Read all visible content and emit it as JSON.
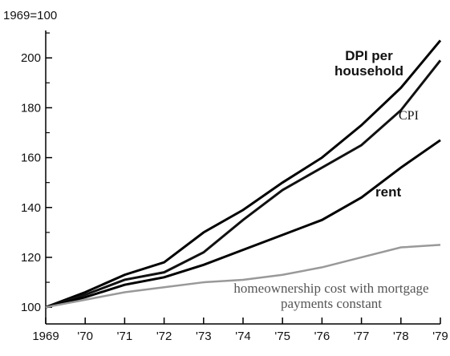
{
  "chart_data": {
    "type": "line",
    "ylabel": "1969=100",
    "categories": [
      "1969",
      "'70",
      "'71",
      "'72",
      "'73",
      "'74",
      "'75",
      "'76",
      "'77",
      "'78",
      "'79"
    ],
    "series": [
      {
        "name": "DPI per household",
        "color": "#000000",
        "values": [
          100,
          106,
          113,
          118,
          130,
          139,
          150,
          160,
          173,
          188,
          207
        ]
      },
      {
        "name": "CPI",
        "color": "#111111",
        "values": [
          100,
          105,
          111,
          114,
          122,
          135,
          147,
          156,
          165,
          179,
          199
        ]
      },
      {
        "name": "rent",
        "color": "#000000",
        "values": [
          100,
          104,
          109,
          112,
          117,
          123,
          129,
          135,
          144,
          156,
          167
        ]
      },
      {
        "name": "homeownership cost with mortgage payments constant",
        "color": "#999999",
        "values": [
          100,
          103,
          106,
          108,
          110,
          111,
          113,
          116,
          120,
          124,
          125
        ]
      }
    ],
    "ylim": [
      93.3,
      211
    ],
    "yticks": [
      100,
      120,
      140,
      160,
      180,
      200
    ],
    "yminorticks": [
      110,
      130,
      150,
      170,
      190,
      210
    ]
  }
}
